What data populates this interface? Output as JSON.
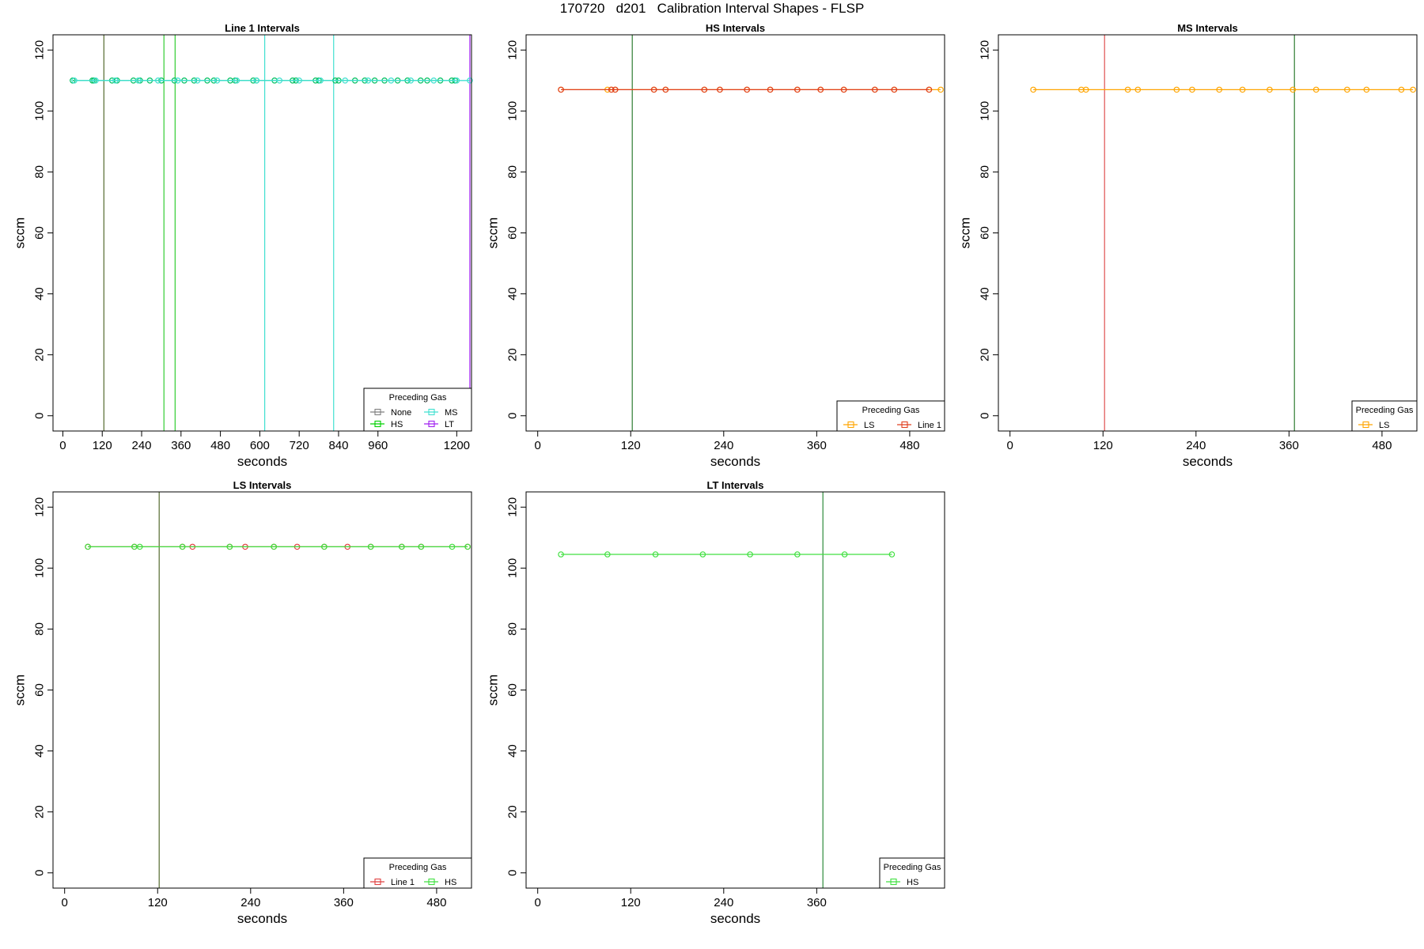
{
  "figure": {
    "title": "170720   d201   Calibration Interval Shapes - FLSP"
  },
  "chart_data": [
    {
      "type": "line",
      "title": "Line 1 Intervals",
      "xlabel": "seconds",
      "ylabel": "sccm",
      "xlim": [
        -30,
        1245
      ],
      "ylim": [
        -5,
        125
      ],
      "xticks": [
        0,
        120,
        240,
        360,
        480,
        600,
        720,
        840,
        960,
        1200
      ],
      "yticks": [
        0,
        20,
        40,
        60,
        80,
        100,
        120
      ],
      "legend": {
        "title": "Preceding Gas",
        "position": "bottom-right",
        "columns": 2,
        "entries": [
          {
            "label": "None",
            "color": "#808080"
          },
          {
            "label": "MS",
            "color": "#40e0d0"
          },
          {
            "label": "HS",
            "color": "#00d000"
          },
          {
            "label": "LT",
            "color": "#a020f0"
          }
        ]
      },
      "vlines": [
        {
          "x": 125,
          "color": "#556b2f"
        },
        {
          "x": 308,
          "color": "#32cd32"
        },
        {
          "x": 342,
          "color": "#32cd32"
        },
        {
          "x": 615,
          "color": "#40e0d0"
        },
        {
          "x": 825,
          "color": "#40e0d0"
        },
        {
          "x": 1240,
          "color": "#a020f0"
        }
      ],
      "series": [
        {
          "color": "#00c060",
          "x": [
            30,
            90,
            95,
            150,
            165,
            215,
            235,
            265,
            300,
            340,
            370,
            400,
            440,
            460,
            510,
            525,
            580,
            590,
            645,
            700,
            710,
            770,
            780,
            830,
            840,
            890,
            920,
            950,
            980,
            1020,
            1050,
            1090,
            1110,
            1150,
            1185,
            1195
          ],
          "y": [
            110,
            110,
            110,
            110,
            110,
            110,
            110,
            110,
            110,
            110,
            110,
            110,
            110,
            110,
            110,
            110,
            110,
            110,
            110,
            110,
            110,
            110,
            110,
            110,
            110,
            110,
            110,
            110,
            110,
            110,
            110,
            110,
            110,
            110,
            110,
            110
          ]
        },
        {
          "color": "#40e0d0",
          "x": [
            35,
            100,
            160,
            230,
            290,
            350,
            410,
            470,
            530,
            590,
            660,
            720,
            785,
            860,
            930,
            1000,
            1060,
            1130,
            1200,
            1240
          ],
          "y": [
            110,
            110,
            110,
            110,
            110,
            110,
            110,
            110,
            110,
            110,
            110,
            110,
            110,
            110,
            110,
            110,
            110,
            110,
            110,
            110
          ]
        }
      ]
    },
    {
      "type": "line",
      "title": "HS Intervals",
      "xlabel": "seconds",
      "ylabel": "sccm",
      "xlim": [
        -15,
        525
      ],
      "ylim": [
        -5,
        125
      ],
      "xticks": [
        0,
        120,
        240,
        360,
        480
      ],
      "yticks": [
        0,
        20,
        40,
        60,
        80,
        100,
        120
      ],
      "legend": {
        "title": "Preceding Gas",
        "position": "bottom-right",
        "columns": 2,
        "entries": [
          {
            "label": "LS",
            "color": "#ffa500"
          },
          {
            "label": "Line 1",
            "color": "#e04020"
          }
        ]
      },
      "vlines": [
        {
          "x": 122,
          "color": "#2e7d32"
        }
      ],
      "series": [
        {
          "color": "#ffa500",
          "x": [
            30,
            90,
            95,
            100,
            150,
            165,
            215,
            235,
            270,
            300,
            335,
            365,
            395,
            435,
            460,
            505,
            520
          ],
          "y": [
            107,
            107,
            107,
            107,
            107,
            107,
            107,
            107,
            107,
            107,
            107,
            107,
            107,
            107,
            107,
            107,
            107
          ]
        },
        {
          "color": "#e04020",
          "x": [
            30,
            95,
            100,
            150,
            165,
            215,
            235,
            270,
            300,
            335,
            365,
            395,
            435,
            460,
            505
          ],
          "y": [
            107,
            107,
            107,
            107,
            107,
            107,
            107,
            107,
            107,
            107,
            107,
            107,
            107,
            107,
            107
          ]
        }
      ]
    },
    {
      "type": "line",
      "title": "MS Intervals",
      "xlabel": "seconds",
      "ylabel": "sccm",
      "xlim": [
        -15,
        525
      ],
      "ylim": [
        -5,
        125
      ],
      "xticks": [
        0,
        120,
        240,
        360,
        480
      ],
      "yticks": [
        0,
        20,
        40,
        60,
        80,
        100,
        120
      ],
      "legend": {
        "title": "Preceding Gas",
        "position": "bottom-right",
        "columns": 1,
        "entries": [
          {
            "label": "LS",
            "color": "#ffa500"
          }
        ]
      },
      "vlines": [
        {
          "x": 122,
          "color": "#e05050"
        },
        {
          "x": 367,
          "color": "#2e7d32"
        }
      ],
      "series": [
        {
          "color": "#ffa500",
          "x": [
            30,
            92,
            98,
            152,
            165,
            215,
            235,
            270,
            300,
            335,
            365,
            395,
            435,
            460,
            505,
            520
          ],
          "y": [
            107,
            107,
            107,
            107,
            107,
            107,
            107,
            107,
            107,
            107,
            107,
            107,
            107,
            107,
            107,
            107
          ]
        }
      ]
    },
    {
      "type": "line",
      "title": "LS Intervals",
      "xlabel": "seconds",
      "ylabel": "sccm",
      "xlim": [
        -15,
        525
      ],
      "ylim": [
        -5,
        125
      ],
      "xticks": [
        0,
        120,
        240,
        360,
        480
      ],
      "yticks": [
        0,
        20,
        40,
        60,
        80,
        100,
        120
      ],
      "legend": {
        "title": "Preceding Gas",
        "position": "bottom-right",
        "columns": 2,
        "entries": [
          {
            "label": "Line 1",
            "color": "#e04040"
          },
          {
            "label": "HS",
            "color": "#40e040"
          }
        ]
      },
      "vlines": [
        {
          "x": 122,
          "color": "#556b2f"
        }
      ],
      "series": [
        {
          "color": "#e04040",
          "x": [
            30,
            90,
            152,
            165,
            213,
            233,
            270,
            300,
            335,
            365,
            395,
            435,
            460,
            520
          ],
          "y": [
            107,
            107,
            107,
            107,
            107,
            107,
            107,
            107,
            107,
            107,
            107,
            107,
            107,
            107
          ]
        },
        {
          "color": "#40e040",
          "x": [
            30,
            90,
            97,
            152,
            213,
            270,
            335,
            395,
            435,
            460,
            500,
            520
          ],
          "y": [
            107,
            107,
            107,
            107,
            107,
            107,
            107,
            107,
            107,
            107,
            107,
            107
          ]
        }
      ]
    },
    {
      "type": "line",
      "title": "LT Intervals",
      "xlabel": "seconds",
      "ylabel": "sccm",
      "xlim": [
        -15,
        525
      ],
      "ylim": [
        -5,
        125
      ],
      "xticks": [
        0,
        120,
        240,
        360
      ],
      "yticks": [
        0,
        20,
        40,
        60,
        80,
        100,
        120
      ],
      "legend": {
        "title": "Preceding Gas",
        "position": "bottom-right",
        "columns": 1,
        "entries": [
          {
            "label": "HS",
            "color": "#40e040"
          }
        ]
      },
      "vlines": [
        {
          "x": 368,
          "color": "#2e8b3a"
        }
      ],
      "series": [
        {
          "color": "#40e040",
          "x": [
            30,
            90,
            152,
            213,
            274,
            335,
            396,
            457
          ],
          "y": [
            104.5,
            104.5,
            104.5,
            104.5,
            104.5,
            104.5,
            104.5,
            104.5
          ]
        }
      ]
    }
  ]
}
